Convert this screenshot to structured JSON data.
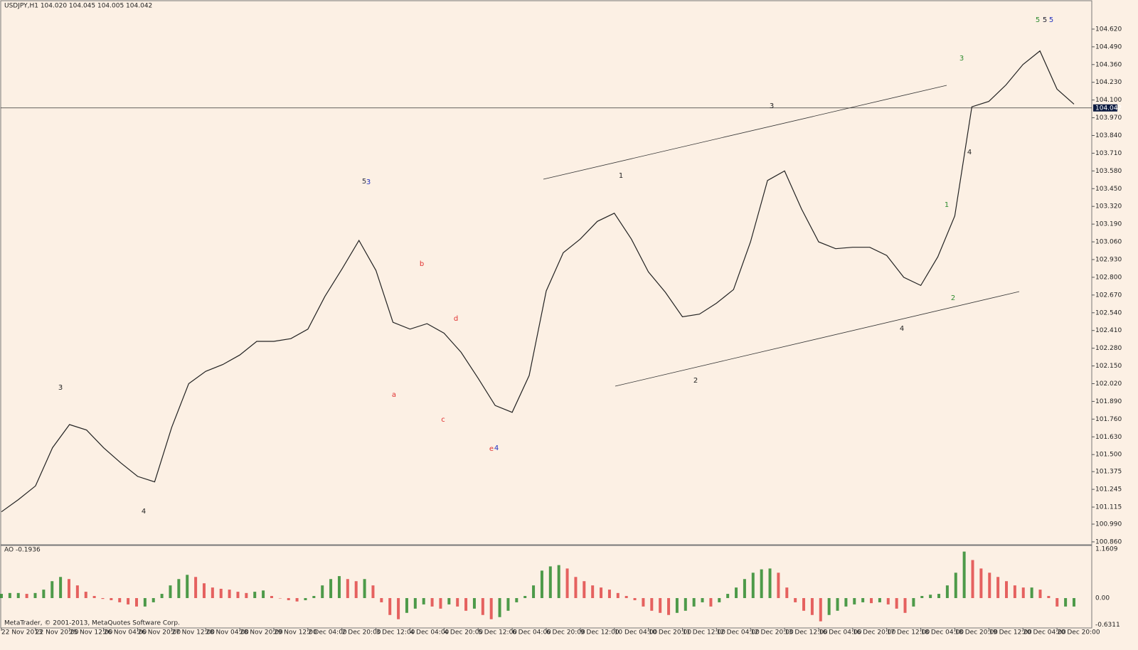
{
  "header": "USDJPY,H1  104.020 104.045 104.005 104.042",
  "footer": "MetaTrader, © 2001-2013, MetaQuotes Software Corp.",
  "chart_data": [
    {
      "type": "line",
      "color": "#222222",
      "current_price": 104.042,
      "categories": [
        "22 Nov 2013",
        null,
        "22 Nov 20:00",
        null,
        "25 Nov 12:00",
        null,
        "26 Nov 04:00",
        null,
        "26 Nov 20:00",
        null,
        "27 Nov 12:00",
        null,
        "28 Nov 04:00",
        null,
        "28 Nov 20:00",
        null,
        "29 Nov 12:00",
        null,
        "2 Dec 04:00",
        null,
        "2 Dec 20:00",
        null,
        "3 Dec 12:00",
        null,
        "4 Dec 04:00",
        null,
        "4 Dec 20:00",
        null,
        "5 Dec 12:00",
        null,
        "6 Dec 04:00",
        null,
        "6 Dec 20:00",
        null,
        "9 Dec 12:00",
        null,
        "10 Dec 04:00",
        null,
        "10 Dec 20:00",
        null,
        "11 Dec 12:00",
        null,
        "12 Dec 04:00",
        null,
        "12 Dec 20:00",
        null,
        "13 Dec 12:00",
        null,
        "16 Dec 04:00",
        null,
        "16 Dec 20:00",
        null,
        "17 Dec 12:00",
        null,
        "18 Dec 04:00",
        null,
        "18 Dec 20:00",
        null,
        "19 Dec 12:00",
        null,
        "20 Dec 04:00",
        null,
        "20 Dec 20:00",
        null
      ],
      "values": [
        101.08,
        101.17,
        101.27,
        101.55,
        101.72,
        101.68,
        101.55,
        101.44,
        101.34,
        101.3,
        101.7,
        102.02,
        102.11,
        102.16,
        102.23,
        102.33,
        102.33,
        102.35,
        102.42,
        102.66,
        102.86,
        103.07,
        102.85,
        102.47,
        102.42,
        102.46,
        102.39,
        102.25,
        102.06,
        101.86,
        101.81,
        102.08,
        102.7,
        102.98,
        103.08,
        103.21,
        103.27,
        103.08,
        102.84,
        102.69,
        102.51,
        102.53,
        102.61,
        102.71,
        103.06,
        103.51,
        103.58,
        103.3,
        103.06,
        103.01,
        103.02,
        103.02,
        102.96,
        102.8,
        102.74,
        102.95,
        103.25,
        104.05,
        104.09,
        104.21,
        104.36,
        104.46,
        104.18,
        104.07
      ],
      "ylim": [
        100.844,
        104.823
      ],
      "yticks": [
        {
          "value": 104.62,
          "label": "104.620"
        },
        {
          "value": 104.49,
          "label": "104.490"
        },
        {
          "value": 104.36,
          "label": "104.360"
        },
        {
          "value": 104.23,
          "label": "104.230"
        },
        {
          "value": 104.1,
          "label": "104.100"
        },
        {
          "value": 103.97,
          "label": "103.970"
        },
        {
          "value": 103.84,
          "label": "103.840"
        },
        {
          "value": 103.71,
          "label": "103.710"
        },
        {
          "value": 103.58,
          "label": "103.580"
        },
        {
          "value": 103.45,
          "label": "103.450"
        },
        {
          "value": 103.32,
          "label": "103.320"
        },
        {
          "value": 103.19,
          "label": "103.190"
        },
        {
          "value": 103.06,
          "label": "103.060"
        },
        {
          "value": 102.93,
          "label": "102.930"
        },
        {
          "value": 102.8,
          "label": "102.800"
        },
        {
          "value": 102.67,
          "label": "102.670"
        },
        {
          "value": 102.54,
          "label": "102.540"
        },
        {
          "value": 102.41,
          "label": "102.410"
        },
        {
          "value": 102.28,
          "label": "102.280"
        },
        {
          "value": 102.15,
          "label": "102.150"
        },
        {
          "value": 102.02,
          "label": "102.020"
        },
        {
          "value": 101.89,
          "label": "101.890"
        },
        {
          "value": 101.76,
          "label": "101.760"
        },
        {
          "value": 101.63,
          "label": "101.630"
        },
        {
          "value": 101.5,
          "label": "101.500"
        },
        {
          "value": 101.375,
          "label": "101.375"
        },
        {
          "value": 101.245,
          "label": "101.245"
        },
        {
          "value": 101.115,
          "label": "101.115"
        },
        {
          "value": 100.99,
          "label": "100.990"
        },
        {
          "value": 100.86,
          "label": "100.860"
        }
      ],
      "annotations": [
        "3",
        "4",
        "5",
        "3",
        "b",
        "a",
        "d",
        "c",
        "e",
        "4",
        "1",
        "2",
        "3",
        "4",
        "2",
        "1",
        "3",
        "4",
        "5",
        "5",
        "5"
      ]
    },
    {
      "type": "histogram",
      "title": "AO -0.1936",
      "up_color": "#2e8b2e",
      "down_color": "#e04848",
      "values": [
        0.1,
        0.12,
        0.12,
        0.1,
        0.12,
        0.2,
        0.4,
        0.5,
        0.45,
        0.3,
        0.15,
        0.05,
        -0.02,
        -0.05,
        -0.1,
        -0.15,
        -0.2,
        -0.2,
        -0.1,
        0.1,
        0.3,
        0.45,
        0.55,
        0.5,
        0.35,
        0.25,
        0.22,
        0.2,
        0.15,
        0.12,
        0.15,
        0.18,
        0.05,
        0.0,
        -0.05,
        -0.08,
        -0.05,
        0.05,
        0.3,
        0.45,
        0.52,
        0.45,
        0.4,
        0.45,
        0.3,
        -0.1,
        -0.4,
        -0.5,
        -0.35,
        -0.25,
        -0.15,
        -0.2,
        -0.25,
        -0.15,
        -0.2,
        -0.3,
        -0.25,
        -0.4,
        -0.5,
        -0.45,
        -0.3,
        -0.1,
        0.05,
        0.3,
        0.65,
        0.75,
        0.78,
        0.7,
        0.5,
        0.4,
        0.3,
        0.25,
        0.2,
        0.12,
        0.05,
        -0.05,
        -0.2,
        -0.3,
        -0.35,
        -0.4,
        -0.35,
        -0.3,
        -0.2,
        -0.1,
        -0.2,
        -0.1,
        0.1,
        0.25,
        0.45,
        0.6,
        0.68,
        0.7,
        0.6,
        0.25,
        -0.1,
        -0.3,
        -0.4,
        -0.55,
        -0.4,
        -0.3,
        -0.2,
        -0.15,
        -0.1,
        -0.12,
        -0.1,
        -0.15,
        -0.25,
        -0.35,
        -0.2,
        0.05,
        0.08,
        0.1,
        0.3,
        0.6,
        1.1,
        0.9,
        0.7,
        0.6,
        0.5,
        0.4,
        0.3,
        0.25,
        0.25,
        0.2,
        0.05,
        -0.2,
        -0.2,
        -0.2
      ],
      "ylim": [
        -0.6311,
        1.1609
      ],
      "yticks": [
        1.1609,
        {
          "value": 0,
          "label": "0.00"
        },
        -0.6311
      ]
    }
  ]
}
